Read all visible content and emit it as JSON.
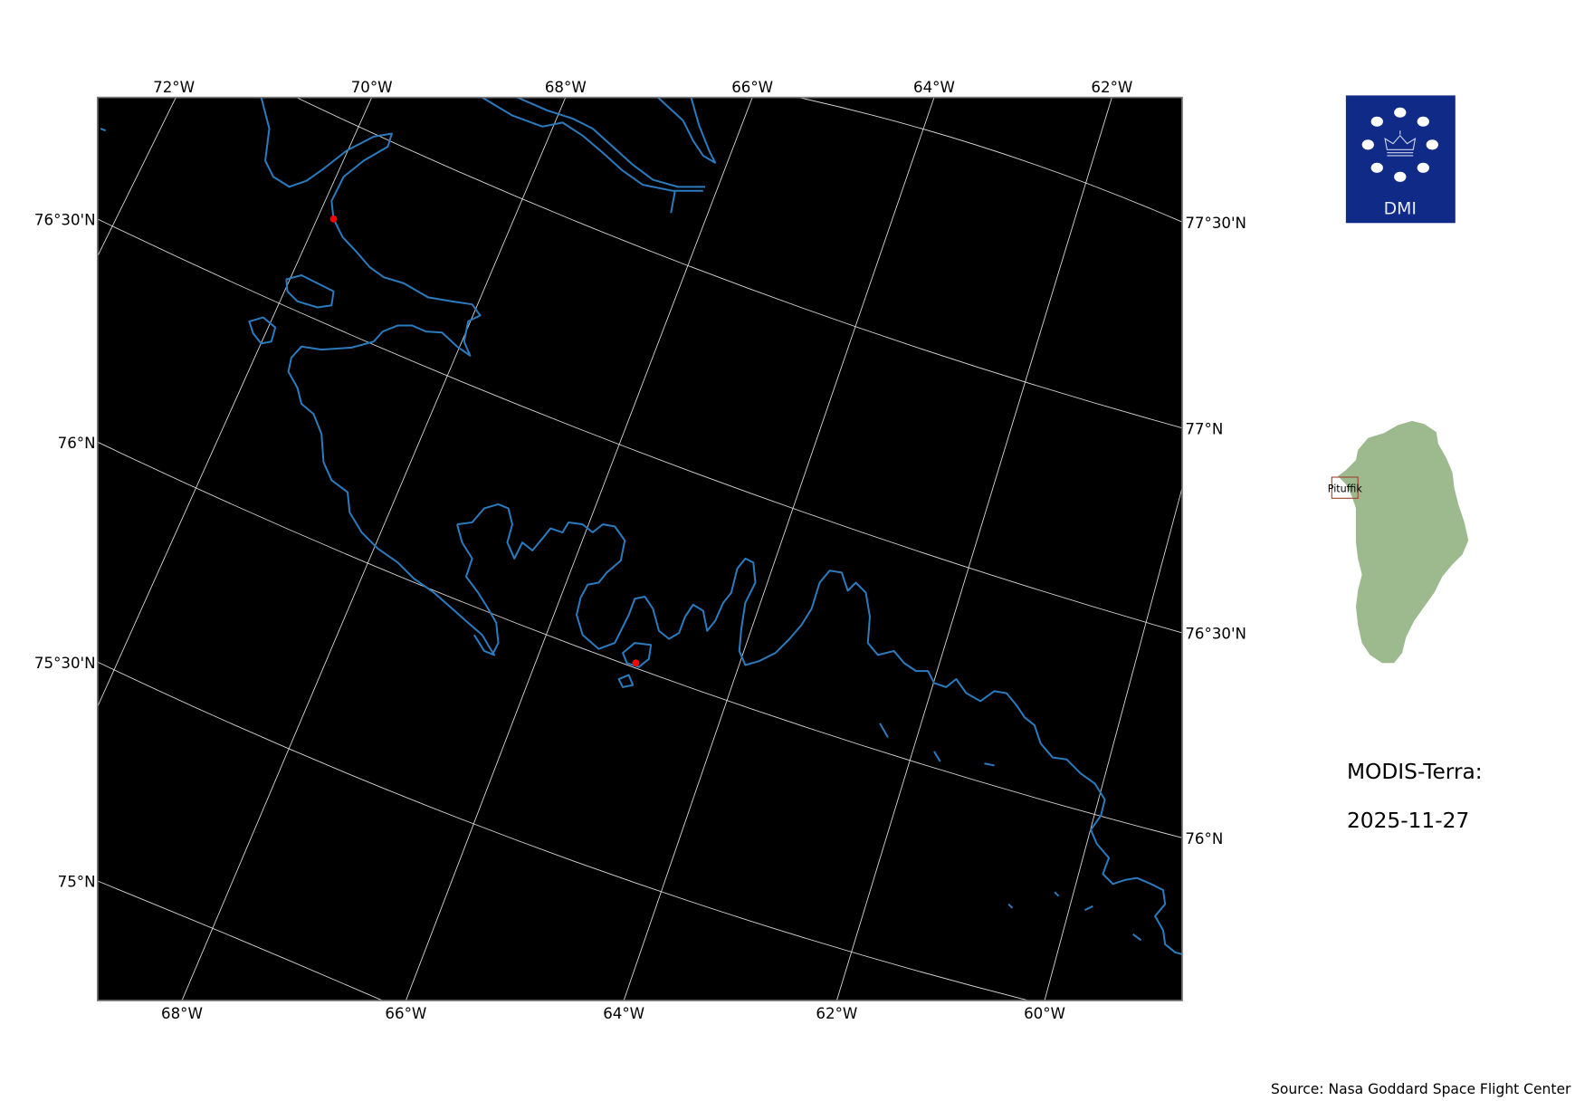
{
  "map": {
    "top_lon_labels": [
      "72°W",
      "70°W",
      "68°W",
      "66°W",
      "64°W",
      "62°W"
    ],
    "bottom_lon_labels": [
      "68°W",
      "66°W",
      "64°W",
      "62°W",
      "60°W"
    ],
    "left_lat_labels": [
      "76°30'N",
      "76°N",
      "75°30'N",
      "75°N"
    ],
    "right_lat_labels": [
      "77°30'N",
      "77°N",
      "76°30'N",
      "76°N"
    ],
    "background_color": "#000000",
    "coastline_color": "#2b7bbf",
    "gridline_color": "#d9d9d9",
    "marker_color": "#ff0000"
  },
  "logo": {
    "text": "DMI",
    "color": "#0f2a87"
  },
  "inset": {
    "label": "Pituffik",
    "land_color": "#9dba8f",
    "box_color": "#a0412a"
  },
  "info": {
    "sensor": "MODIS-Terra:",
    "date": "2025-11-27"
  },
  "source": "Source: Nasa Goddard Space Flight Center"
}
